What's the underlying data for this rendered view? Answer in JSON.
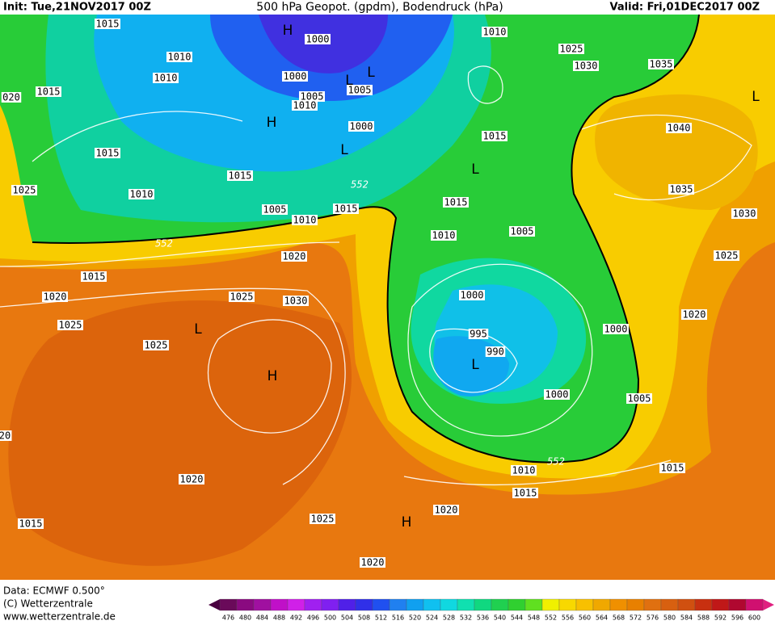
{
  "header": {
    "init": "Init: Tue,21NOV2017 00Z",
    "title": "500 hPa Geopot. (gpdm), Bodendruck (hPa)",
    "valid": "Valid: Fri,01DEC2017 00Z"
  },
  "isobar_labels": [
    "1015",
    "1000",
    "1010",
    "1010",
    "1000",
    "1015",
    "1005",
    "1005",
    "1010",
    "1000",
    "1015",
    "1015",
    "1010",
    "1005",
    "1010",
    "1015",
    "1025",
    "020",
    "1020",
    "1015",
    "1020",
    "1025",
    "1030",
    "1025",
    "1025",
    "1020",
    "1015",
    "1025",
    "1020",
    "1020",
    "1015",
    "1010",
    "1015",
    "1005",
    "1000",
    "1000",
    "990",
    "995",
    "1000",
    "1010",
    "1015",
    "1005",
    "1015",
    "1010",
    "1025",
    "1030",
    "1035",
    "1040",
    "1035",
    "1030",
    "1025",
    "1020",
    "20"
  ],
  "contour_labels": [
    "552",
    "552",
    "552"
  ],
  "pressure_centers": [
    "H",
    "L",
    "L",
    "H",
    "L",
    "L",
    "L",
    "L",
    "H",
    "L",
    "H"
  ],
  "footer": {
    "data": "Data: ECMWF  0.500°",
    "copyright": "(C) Wetterzentrale",
    "url": "www.wetterzentrale.de"
  },
  "colorbar": {
    "levels": [
      476,
      480,
      484,
      488,
      492,
      496,
      500,
      504,
      508,
      512,
      516,
      520,
      524,
      528,
      532,
      536,
      540,
      544,
      548,
      552,
      556,
      560,
      564,
      568,
      572,
      576,
      580,
      584,
      588,
      592,
      596,
      600
    ],
    "colors": [
      "#6a0a5a",
      "#8a0a80",
      "#a010a0",
      "#c010c8",
      "#d020e8",
      "#a020f0",
      "#8020f0",
      "#5020e8",
      "#3030e8",
      "#2050f0",
      "#2080f0",
      "#10a0f0",
      "#10c0f0",
      "#10d8e0",
      "#10e0b0",
      "#10d880",
      "#20d050",
      "#30d030",
      "#60e020",
      "#f0f000",
      "#f8d800",
      "#f8c000",
      "#f0a800",
      "#f09000",
      "#e88000",
      "#e07010",
      "#d86010",
      "#d05010",
      "#c83010",
      "#c01818",
      "#b00830",
      "#d01070"
    ],
    "under_color": "#4a0040",
    "over_color": "#e02080"
  }
}
